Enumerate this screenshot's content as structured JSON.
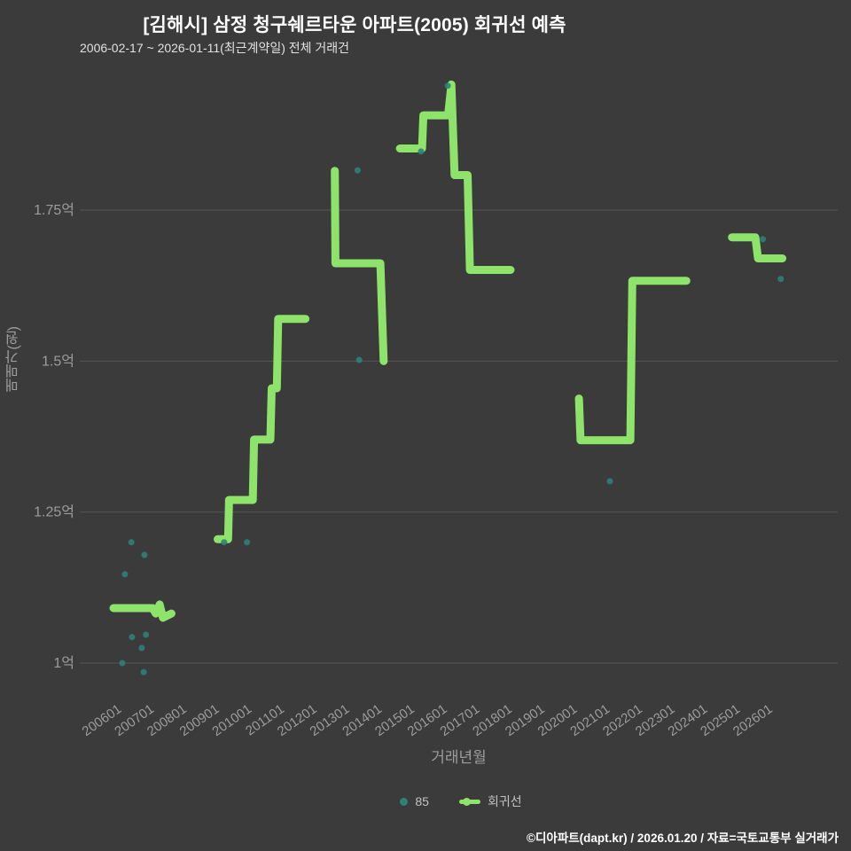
{
  "header": {
    "title": "[김해시] 삼정 청구쉐르타운 아파트(2005) 회귀선 예측",
    "subtitle": "2006-02-17 ~ 2026-01-11(최근계약일) 전체 거래건"
  },
  "footer": {
    "text": "©디아파트(dapt.kr) / 2026.01.20 / 자료=국토교통부 실거래가"
  },
  "chart_data": {
    "type": "line",
    "title": "[김해시] 삼정 청구쉐르타운 아파트(2005) 회귀선 예측",
    "subtitle": "2006-02-17 ~ 2026-01-11(최근계약일) 전체 거래건",
    "xlabel": "거래년월",
    "ylabel": "매매가(원)",
    "x_tick_start_year": 2006,
    "x_ticks": [
      "200601",
      "200701",
      "200801",
      "200901",
      "201001",
      "201101",
      "201201",
      "201301",
      "201401",
      "201501",
      "201601",
      "201701",
      "201801",
      "201901",
      "202001",
      "202101",
      "202201",
      "202301",
      "202401",
      "202501",
      "202601"
    ],
    "y_ticks": [
      {
        "label": "1억",
        "value": 1.0
      },
      {
        "label": "1.25억",
        "value": 1.25
      },
      {
        "label": "1.5억",
        "value": 1.5
      },
      {
        "label": "1.75억",
        "value": 1.75
      }
    ],
    "xlim": [
      2005.5,
      2026.9
    ],
    "ylim": [
      0.93,
      2.0
    ],
    "grid": true,
    "legend_position": "bottom",
    "colors": {
      "background": "#3b3b3b",
      "grid": "#555555",
      "tick": "#9c9c9c",
      "scatter": "#2f8177",
      "line": "#8ee36b",
      "title": "#ffffff",
      "footer": "#ffffff"
    },
    "legend": [
      {
        "label": "85",
        "marker": "point",
        "color": "#2f8177"
      },
      {
        "label": "회귀선",
        "marker": "line",
        "color": "#8ee36b"
      }
    ],
    "series": [
      {
        "name": "85",
        "type": "scatter",
        "color": "#2f8177",
        "points": [
          [
            2006.27,
            1.0
          ],
          [
            2006.35,
            1.147
          ],
          [
            2006.55,
            1.2
          ],
          [
            2006.57,
            1.043
          ],
          [
            2006.87,
            1.025
          ],
          [
            2006.93,
            0.985
          ],
          [
            2006.95,
            1.179
          ],
          [
            2007.0,
            1.047
          ],
          [
            2009.4,
            1.2
          ],
          [
            2010.1,
            1.2
          ],
          [
            2013.5,
            1.816
          ],
          [
            2013.55,
            1.502
          ],
          [
            2015.45,
            1.847
          ],
          [
            2016.27,
            1.956
          ],
          [
            2021.25,
            1.301
          ],
          [
            2025.95,
            1.702
          ],
          [
            2026.5,
            1.636
          ]
        ]
      },
      {
        "name": "회귀선",
        "type": "line",
        "color": "#8ee36b",
        "width": 9,
        "segments": [
          [
            [
              2006.0,
              1.091
            ],
            [
              2007.2,
              1.091
            ],
            [
              2007.3,
              1.082
            ],
            [
              2007.42,
              1.097
            ],
            [
              2007.52,
              1.075
            ],
            [
              2007.78,
              1.082
            ]
          ],
          [
            [
              2009.2,
              1.205
            ],
            [
              2009.52,
              1.205
            ],
            [
              2009.55,
              1.27
            ],
            [
              2010.28,
              1.27
            ],
            [
              2010.32,
              1.37
            ],
            [
              2010.82,
              1.37
            ],
            [
              2010.86,
              1.455
            ],
            [
              2011.02,
              1.455
            ],
            [
              2011.06,
              1.57
            ],
            [
              2011.9,
              1.57
            ]
          ],
          [
            [
              2012.8,
              1.815
            ],
            [
              2012.82,
              1.662
            ],
            [
              2014.2,
              1.662
            ],
            [
              2014.3,
              1.5
            ]
          ],
          [
            [
              2014.8,
              1.852
            ],
            [
              2015.48,
              1.852
            ],
            [
              2015.52,
              1.907
            ],
            [
              2016.28,
              1.907
            ],
            [
              2016.38,
              1.958
            ],
            [
              2016.48,
              1.808
            ],
            [
              2016.88,
              1.808
            ],
            [
              2016.95,
              1.651
            ],
            [
              2018.2,
              1.651
            ]
          ],
          [
            [
              2020.3,
              1.438
            ],
            [
              2020.35,
              1.369
            ],
            [
              2021.88,
              1.369
            ],
            [
              2021.94,
              1.633
            ],
            [
              2023.6,
              1.633
            ]
          ],
          [
            [
              2025.0,
              1.705
            ],
            [
              2025.72,
              1.705
            ],
            [
              2025.8,
              1.67
            ],
            [
              2026.55,
              1.67
            ]
          ]
        ]
      }
    ]
  }
}
